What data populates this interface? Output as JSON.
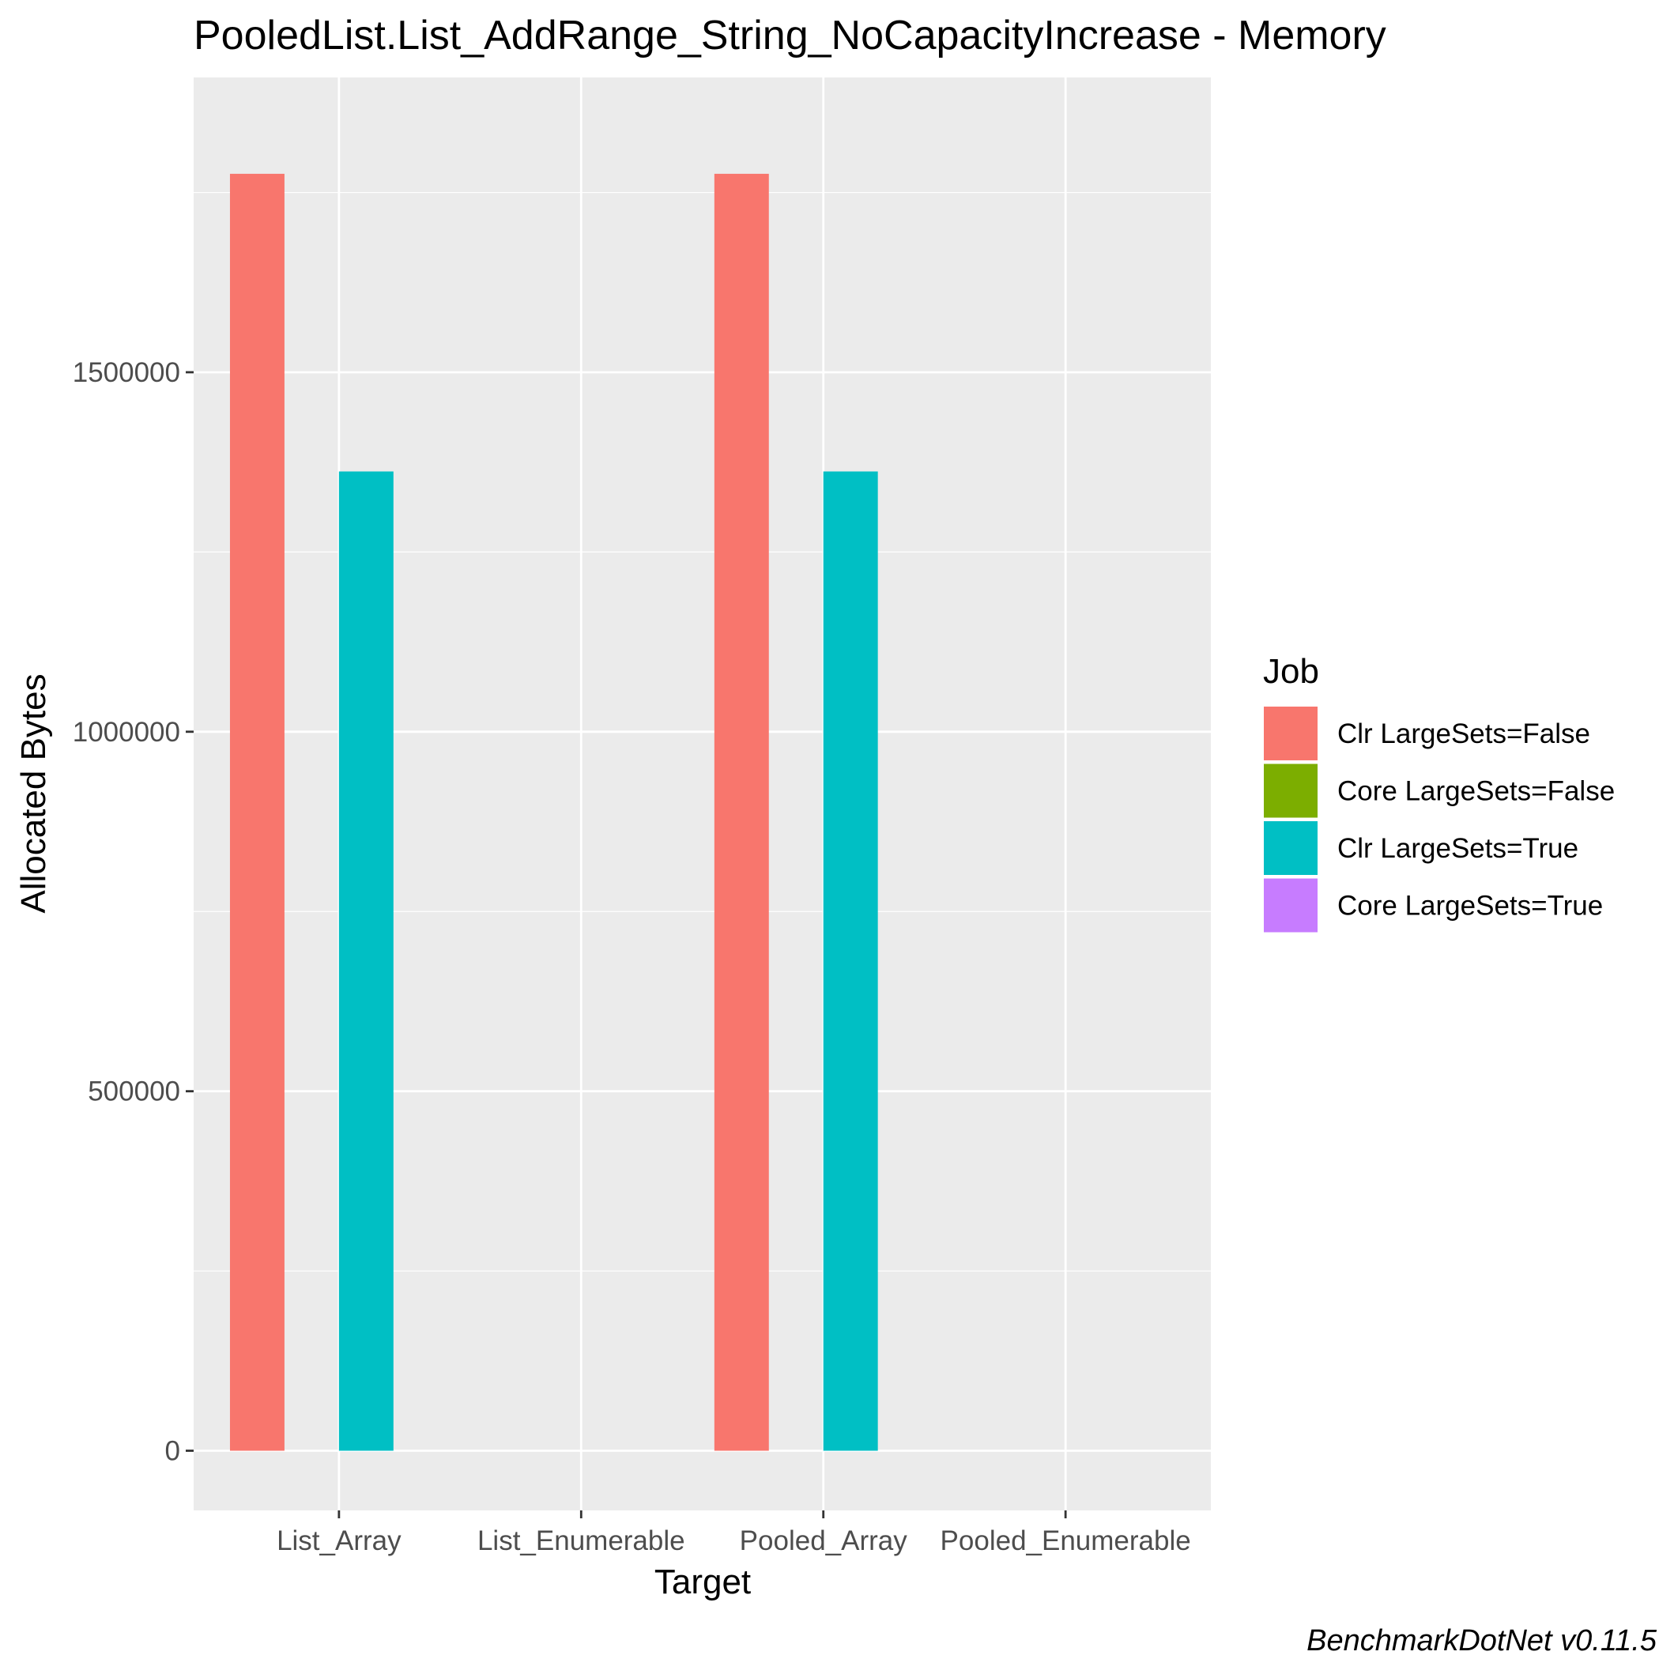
{
  "chart_data": {
    "type": "bar",
    "title": "PooledList.List_AddRange_String_NoCapacityIncrease - Memory",
    "xlabel": "Target",
    "ylabel": "Allocated  Bytes",
    "categories": [
      "List_Array",
      "List_Enumerable",
      "Pooled_Array",
      "Pooled_Enumerable"
    ],
    "y_ticks": [
      0,
      500000,
      1000000,
      1500000
    ],
    "y_tick_labels": [
      "0",
      "500000",
      "1000000",
      "1500000"
    ],
    "ylim": [
      -83000,
      1910000
    ],
    "grid": true,
    "legend": {
      "title": "Job",
      "position": "right"
    },
    "series": [
      {
        "name": "Clr LargeSets=False",
        "color": "#F8766D",
        "values": [
          1776000,
          0,
          1776000,
          0
        ]
      },
      {
        "name": "Core LargeSets=False",
        "color": "#7CAE00",
        "values": [
          0,
          0,
          0,
          0
        ]
      },
      {
        "name": "Clr LargeSets=True",
        "color": "#00BFC4",
        "values": [
          1362000,
          0,
          1362000,
          0
        ]
      },
      {
        "name": "Core LargeSets=True",
        "color": "#C77CFF",
        "values": [
          0,
          0,
          0,
          0
        ]
      }
    ],
    "caption": "BenchmarkDotNet v0.11.5"
  },
  "colors": {
    "panel_background": "#EBEBEB",
    "grid_major": "#FFFFFF",
    "grid_minor": "#F5F5F5",
    "tick_label": "#4D4D4D"
  }
}
